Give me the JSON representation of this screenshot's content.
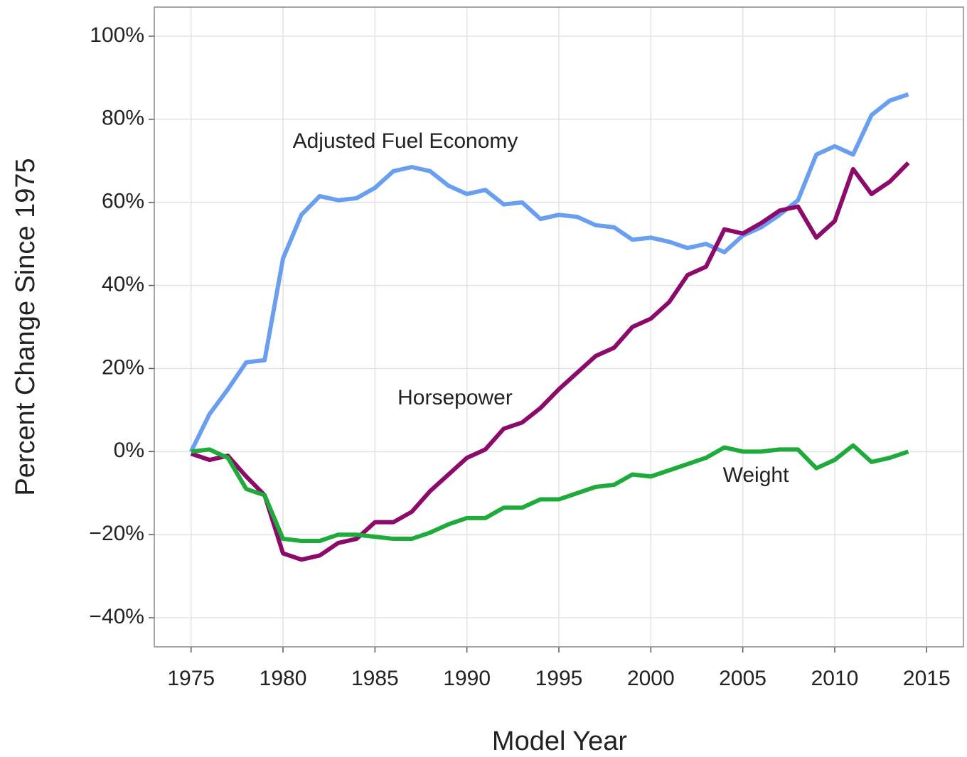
{
  "chart_data": {
    "type": "line",
    "xlabel": "Model Year",
    "ylabel": "Percent Change Since 1975",
    "x": [
      1975,
      1976,
      1977,
      1978,
      1979,
      1980,
      1981,
      1982,
      1983,
      1984,
      1985,
      1986,
      1987,
      1988,
      1989,
      1990,
      1991,
      1992,
      1993,
      1994,
      1995,
      1996,
      1997,
      1998,
      1999,
      2000,
      2001,
      2002,
      2003,
      2004,
      2005,
      2006,
      2007,
      2008,
      2009,
      2010,
      2011,
      2012,
      2013,
      2014
    ],
    "series": [
      {
        "name": "Adjusted Fuel Economy",
        "color": "#6a9ff0",
        "values": [
          0,
          9,
          15,
          21.5,
          22,
          46.5,
          57,
          61.5,
          60.5,
          61,
          63.5,
          67.5,
          68.5,
          67.5,
          64,
          62,
          63,
          59.5,
          60,
          56,
          57,
          56.5,
          54.5,
          54,
          51,
          51.5,
          50.5,
          49,
          50,
          48,
          52,
          54,
          57,
          60.5,
          71.5,
          73.5,
          71.5,
          81,
          84.5,
          86
        ]
      },
      {
        "name": "Horsepower",
        "color": "#8b0a6a",
        "values": [
          -0.5,
          -2,
          -1,
          -6,
          -10.5,
          -24.5,
          -26,
          -25,
          -22,
          -21,
          -17,
          -17,
          -14.5,
          -9.5,
          -5.5,
          -1.5,
          0.5,
          5.5,
          7,
          10.5,
          15,
          19,
          23,
          25,
          30,
          32,
          36,
          42.5,
          44.5,
          53.5,
          52.5,
          55,
          58,
          59,
          51.5,
          55.5,
          68,
          62,
          65,
          69.5
        ]
      },
      {
        "name": "Weight",
        "color": "#1faa3c",
        "values": [
          0,
          0.5,
          -1.5,
          -9,
          -10.5,
          -21,
          -21.5,
          -21.5,
          -20,
          -20,
          -20.5,
          -21,
          -21,
          -19.5,
          -17.5,
          -16,
          -16,
          -13.5,
          -13.5,
          -11.5,
          -11.5,
          -10,
          -8.5,
          -8,
          -5.5,
          -6,
          -4.5,
          -3,
          -1.5,
          1,
          0,
          0,
          0.5,
          0.5,
          -4,
          -2,
          1.5,
          -2.5,
          -1.5,
          0
        ]
      }
    ],
    "xlim": [
      1973,
      2017
    ],
    "ylim": [
      -47,
      107
    ],
    "xticks": [
      1975,
      1980,
      1985,
      1990,
      1995,
      2000,
      2005,
      2010,
      2015
    ],
    "yticks": [
      {
        "value": -40,
        "label": "−40%"
      },
      {
        "value": -20,
        "label": "−20%"
      },
      {
        "value": 0,
        "label": "0%"
      },
      {
        "value": 20,
        "label": "20%"
      },
      {
        "value": 40,
        "label": "40%"
      },
      {
        "value": 60,
        "label": "60%"
      },
      {
        "value": 80,
        "label": "80%"
      },
      {
        "value": 100,
        "label": "100%"
      }
    ],
    "grid": true
  }
}
